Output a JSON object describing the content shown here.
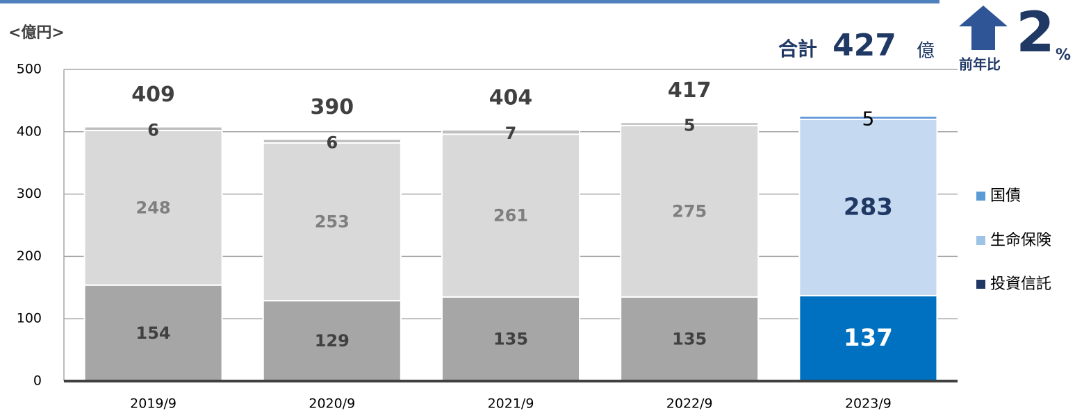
{
  "chart_data": {
    "type": "stacked_bar",
    "unit_label": "<億円>",
    "header": {
      "total_label": "合計",
      "total_value": 427,
      "total_unit": "億",
      "yoy_label": "前年比",
      "yoy_value": 2,
      "yoy_unit": "%"
    },
    "categories": [
      "2019/9",
      "2020/9",
      "2021/9",
      "2022/9",
      "2023/9"
    ],
    "series": [
      {
        "name": "投資信託",
        "color": "#1f3864",
        "bar_colors": [
          "#a6a6a6",
          "#a6a6a6",
          "#a6a6a6",
          "#a6a6a6",
          "#0070c0"
        ],
        "values": [
          154,
          129,
          135,
          135,
          137
        ]
      },
      {
        "name": "生命保険",
        "color": "#9dc3e6",
        "bar_colors": [
          "#d9d9d9",
          "#d9d9d9",
          "#d9d9d9",
          "#d9d9d9",
          "#c5d9f1"
        ],
        "values": [
          248,
          253,
          261,
          275,
          283
        ]
      },
      {
        "name": "国債",
        "color": "#5b9bd5",
        "bar_colors": [
          "#bfbfbf",
          "#bfbfbf",
          "#bfbfbf",
          "#bfbfbf",
          "#558ed5"
        ],
        "values": [
          6,
          6,
          7,
          5,
          5
        ]
      }
    ],
    "totals": [
      409,
      390,
      404,
      417,
      null
    ],
    "ylim": [
      0,
      500
    ],
    "yticks": [
      0,
      100,
      200,
      300,
      400,
      500
    ],
    "grid": true,
    "legend": "right"
  }
}
